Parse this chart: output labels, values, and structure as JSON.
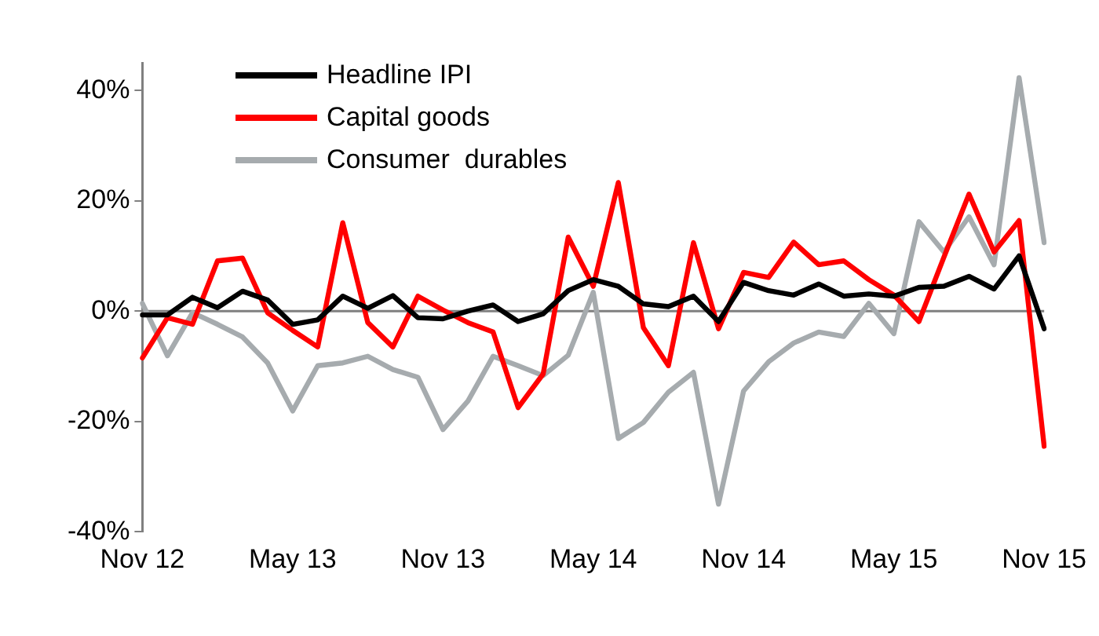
{
  "chart_data": {
    "type": "line",
    "categories": [
      "Nov 12",
      null,
      null,
      null,
      null,
      null,
      "May 13",
      null,
      null,
      null,
      null,
      null,
      "Nov 13",
      null,
      null,
      null,
      null,
      null,
      "May 14",
      null,
      null,
      null,
      null,
      null,
      "Nov 14",
      null,
      null,
      null,
      null,
      null,
      "May 15",
      null,
      null,
      null,
      null,
      null,
      "Nov 15"
    ],
    "series": [
      {
        "name": "Headline IPI",
        "color": "#000000",
        "values": [
          -0.7,
          -0.7,
          2.5,
          0.6,
          3.6,
          2.0,
          -2.4,
          -1.6,
          2.7,
          0.5,
          2.8,
          -1.2,
          -1.4,
          0,
          1.1,
          -1.9,
          -0.5,
          3.7,
          5.7,
          4.5,
          1.3,
          0.8,
          2.7,
          -1.9,
          5.2,
          3.7,
          2.9,
          4.9,
          2.7,
          3.1,
          2.7,
          4.3,
          4.5,
          6.3,
          4.0,
          10.0,
          -3.2
        ]
      },
      {
        "name": "Capital goods",
        "color": "#ff0000",
        "values": [
          -8.5,
          -1.2,
          -2.4,
          9.1,
          9.6,
          -0.3,
          -3.5,
          -6.5,
          16.0,
          -2.1,
          -6.5,
          2.7,
          0.2,
          -2.1,
          -3.8,
          -17.5,
          -11.4,
          13.4,
          4.5,
          23.3,
          -3.0,
          -9.9,
          12.4,
          -3.2,
          7.0,
          6.1,
          12.5,
          8.4,
          9.1,
          5.7,
          2.9,
          -1.9,
          9.8,
          21.2,
          10.7,
          16.4,
          -24.5
        ]
      },
      {
        "name": "Consumer  durables",
        "color": "#a6abae",
        "values": [
          1.4,
          -8.1,
          -0.3,
          -2.4,
          -4.7,
          -9.4,
          -18.1,
          -9.9,
          -9.4,
          -8.2,
          -10.6,
          -12.0,
          -21.5,
          -16.3,
          -8.2,
          -9.9,
          -11.7,
          -8.0,
          3.4,
          -23.1,
          -20.2,
          -14.7,
          -11.1,
          -35.0,
          -14.5,
          -9.2,
          -5.8,
          -3.8,
          -4.6,
          1.4,
          -4.1,
          16.2,
          10.7,
          17.1,
          8.4,
          42.3,
          12.4
        ]
      }
    ],
    "ylim": [
      -40,
      45
    ],
    "yticks": [
      {
        "value": -40,
        "label": "-40%"
      },
      {
        "value": -20,
        "label": "-20%"
      },
      {
        "value": 0,
        "label": "0%"
      },
      {
        "value": 20,
        "label": "20%"
      },
      {
        "value": 40,
        "label": "40%"
      }
    ],
    "ref_lines": [
      {
        "axis": "y",
        "value": 0,
        "color": "#808080"
      }
    ],
    "grid": false,
    "legend": "top left",
    "marker": "none",
    "line_style": "solid"
  }
}
